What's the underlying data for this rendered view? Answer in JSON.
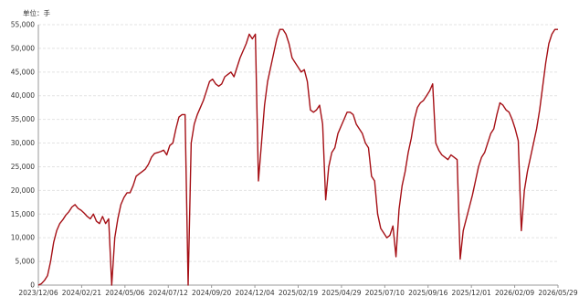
{
  "chart_data": {
    "type": "line",
    "unit_label": "单位：手",
    "title": "",
    "xlabel": "",
    "ylabel": "",
    "ylim": [
      0,
      55000
    ],
    "y_ticks": [
      0,
      5000,
      10000,
      15000,
      20000,
      25000,
      30000,
      35000,
      40000,
      45000,
      50000,
      55000
    ],
    "y_tick_labels": [
      "0",
      "5,000",
      "10,000",
      "15,000",
      "20,000",
      "25,000",
      "30,000",
      "35,000",
      "40,000",
      "45,000",
      "50,000",
      "55,000"
    ],
    "x_ticks": [
      "2023/12/06",
      "2024/02/21",
      "2024/05/06",
      "2024/07/12",
      "2024/09/20",
      "2024/12/04",
      "2025/02/19",
      "2025/04/29",
      "2025/07/10",
      "2025/09/16",
      "2025/12/01",
      "2026/02/09",
      "2026/05/29"
    ],
    "grid": true,
    "legend": "none",
    "series": [
      {
        "color": "#a50f15",
        "values": [
          0,
          300,
          1000,
          2000,
          5000,
          9000,
          11500,
          13000,
          13800,
          14800,
          15500,
          16500,
          17000,
          16200,
          15800,
          15200,
          14500,
          14000,
          15000,
          13500,
          13000,
          14500,
          13000,
          14000,
          0,
          10000,
          14000,
          17000,
          18500,
          19500,
          19500,
          21000,
          23000,
          23500,
          24000,
          24500,
          25500,
          27000,
          27800,
          28000,
          28200,
          28500,
          27500,
          29500,
          30000,
          33000,
          35500,
          36000,
          36000,
          0,
          30000,
          34000,
          36000,
          37500,
          39000,
          41000,
          43000,
          43500,
          42500,
          42000,
          42500,
          44000,
          44500,
          45000,
          44000,
          46000,
          48000,
          49500,
          51000,
          53000,
          52000,
          53000,
          22000,
          30000,
          38000,
          43000,
          46000,
          49000,
          52000,
          54000,
          54000,
          53000,
          51000,
          48000,
          47000,
          46000,
          45000,
          45500,
          43000,
          37000,
          36500,
          37000,
          38000,
          34000,
          18000,
          25000,
          28000,
          29000,
          32000,
          33500,
          35000,
          36500,
          36500,
          36000,
          34000,
          33000,
          32000,
          30000,
          29000,
          23000,
          22000,
          15000,
          12000,
          11000,
          10000,
          10500,
          12500,
          6000,
          16000,
          21000,
          24000,
          28000,
          31000,
          35000,
          37500,
          38500,
          39000,
          40000,
          41000,
          42500,
          30000,
          28500,
          27500,
          27000,
          26500,
          27500,
          27000,
          26500,
          5500,
          11500,
          14000,
          16500,
          19000,
          22000,
          25000,
          27000,
          28000,
          30000,
          32000,
          33000,
          36000,
          38500,
          38000,
          37000,
          36500,
          35000,
          33000,
          30500,
          11500,
          20000,
          24000,
          27000,
          30000,
          33000,
          37000,
          42000,
          47000,
          51000,
          53000,
          54000,
          54000
        ]
      }
    ]
  }
}
